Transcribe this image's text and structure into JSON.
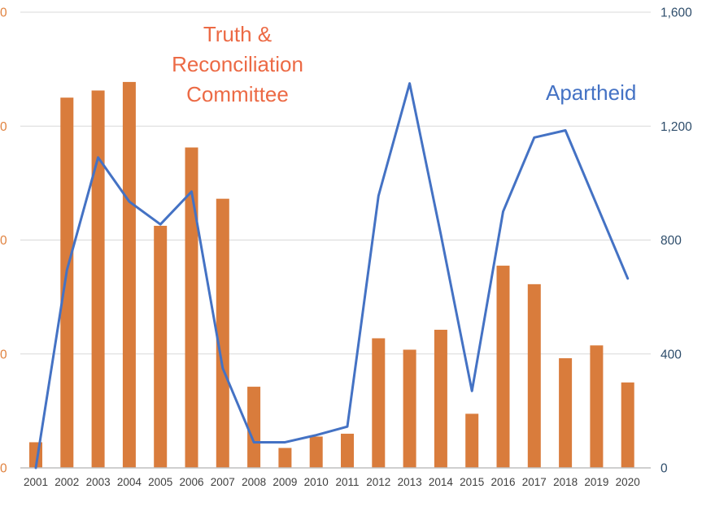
{
  "chart_data": {
    "type": "combo",
    "title": "",
    "categories": [
      "2001",
      "2002",
      "2003",
      "2004",
      "2005",
      "2006",
      "2007",
      "2008",
      "2009",
      "2010",
      "2011",
      "2012",
      "2013",
      "2014",
      "2015",
      "2016",
      "2017",
      "2018",
      "2019",
      "2020"
    ],
    "series": [
      {
        "name": "Truth & Reconciliation Committee",
        "type": "bar",
        "axis": "left",
        "values": [
          90,
          1300,
          1325,
          1355,
          850,
          1125,
          945,
          285,
          70,
          110,
          120,
          455,
          415,
          485,
          190,
          710,
          645,
          385,
          430,
          300
        ],
        "note": "left axis labels are cut off at the image edge (only trailing '0' digits visible); values estimated against the right axis pixel scale"
      },
      {
        "name": "Apartheid",
        "type": "line",
        "axis": "right",
        "values": [
          0,
          695,
          1090,
          935,
          855,
          970,
          350,
          90,
          90,
          115,
          145,
          955,
          1350,
          820,
          270,
          900,
          1160,
          1185,
          925,
          665
        ]
      }
    ],
    "x_axis": {
      "ticks": [
        "2001",
        "2002",
        "2003",
        "2004",
        "2005",
        "2006",
        "2007",
        "2008",
        "2009",
        "2010",
        "2011",
        "2012",
        "2013",
        "2014",
        "2015",
        "2016",
        "2017",
        "2018",
        "2019",
        "2020"
      ]
    },
    "right_axis": {
      "tick_labels": [
        "0",
        "400",
        "800",
        "1,200",
        "1,600"
      ],
      "tick_values": [
        0,
        400,
        800,
        1200,
        1600
      ],
      "range": [
        0,
        1600
      ]
    },
    "left_axis": {
      "visible_fragments": [
        "0",
        "0",
        "0",
        "0",
        "0"
      ],
      "note": "labels truncated by image crop"
    },
    "grid": true,
    "legend_position": "none (inline text annotations)"
  },
  "annotations": {
    "bar_series_label_lines": [
      "Truth &",
      "Reconciliation",
      "Committee"
    ],
    "line_series_label": "Apartheid"
  },
  "colors": {
    "bar": "#D97C3C",
    "line": "#4472C4",
    "bar_label_text": "#EC6A45",
    "line_label_text": "#4472C4",
    "right_axis_text": "#2E4D6B",
    "x_axis_text": "#3F3F3F",
    "gridline": "#D9D9D9",
    "axis_line": "#BFBFBF",
    "left_axis_fragment_text": "#E0823F"
  }
}
